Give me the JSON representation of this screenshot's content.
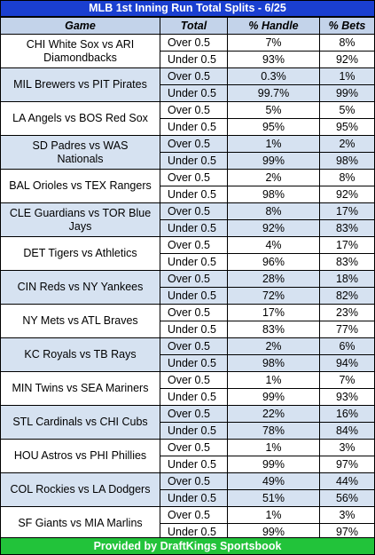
{
  "title": "MLB 1st Inning Run Total Splits - 6/25",
  "headers": {
    "game": "Game",
    "total": "Total",
    "handle": "% Handle",
    "bets": "% Bets"
  },
  "games": [
    {
      "game": "CHI White Sox vs ARI Diamondbacks",
      "over": {
        "total": "Over 0.5",
        "handle": "7%",
        "bets": "8%"
      },
      "under": {
        "total": "Under 0.5",
        "handle": "93%",
        "bets": "92%"
      }
    },
    {
      "game": "MIL Brewers vs PIT Pirates",
      "over": {
        "total": "Over 0.5",
        "handle": "0.3%",
        "bets": "1%"
      },
      "under": {
        "total": "Under 0.5",
        "handle": "99.7%",
        "bets": "99%"
      }
    },
    {
      "game": "LA Angels vs BOS Red Sox",
      "over": {
        "total": "Over 0.5",
        "handle": "5%",
        "bets": "5%"
      },
      "under": {
        "total": "Under 0.5",
        "handle": "95%",
        "bets": "95%"
      }
    },
    {
      "game": "SD Padres vs WAS Nationals",
      "over": {
        "total": "Over 0.5",
        "handle": "1%",
        "bets": "2%"
      },
      "under": {
        "total": "Under 0.5",
        "handle": "99%",
        "bets": "98%"
      }
    },
    {
      "game": "BAL Orioles vs TEX Rangers",
      "over": {
        "total": "Over 0.5",
        "handle": "2%",
        "bets": "8%"
      },
      "under": {
        "total": "Under 0.5",
        "handle": "98%",
        "bets": "92%"
      }
    },
    {
      "game": "CLE Guardians vs TOR Blue Jays",
      "over": {
        "total": "Over 0.5",
        "handle": "8%",
        "bets": "17%"
      },
      "under": {
        "total": "Under 0.5",
        "handle": "92%",
        "bets": "83%"
      }
    },
    {
      "game": "DET Tigers vs Athletics",
      "over": {
        "total": "Over 0.5",
        "handle": "4%",
        "bets": "17%"
      },
      "under": {
        "total": "Under 0.5",
        "handle": "96%",
        "bets": "83%"
      }
    },
    {
      "game": "CIN Reds vs NY Yankees",
      "over": {
        "total": "Over 0.5",
        "handle": "28%",
        "bets": "18%"
      },
      "under": {
        "total": "Under 0.5",
        "handle": "72%",
        "bets": "82%"
      }
    },
    {
      "game": "NY Mets vs ATL Braves",
      "over": {
        "total": "Over 0.5",
        "handle": "17%",
        "bets": "23%"
      },
      "under": {
        "total": "Under 0.5",
        "handle": "83%",
        "bets": "77%"
      }
    },
    {
      "game": "KC Royals vs TB Rays",
      "over": {
        "total": "Over 0.5",
        "handle": "2%",
        "bets": "6%"
      },
      "under": {
        "total": "Under 0.5",
        "handle": "98%",
        "bets": "94%"
      }
    },
    {
      "game": "MIN Twins vs SEA Mariners",
      "over": {
        "total": "Over 0.5",
        "handle": "1%",
        "bets": "7%"
      },
      "under": {
        "total": "Under 0.5",
        "handle": "99%",
        "bets": "93%"
      }
    },
    {
      "game": "STL Cardinals vs CHI Cubs",
      "over": {
        "total": "Over 0.5",
        "handle": "22%",
        "bets": "16%"
      },
      "under": {
        "total": "Under 0.5",
        "handle": "78%",
        "bets": "84%"
      }
    },
    {
      "game": "HOU Astros vs PHI Phillies",
      "over": {
        "total": "Over 0.5",
        "handle": "1%",
        "bets": "3%"
      },
      "under": {
        "total": "Under 0.5",
        "handle": "99%",
        "bets": "97%"
      }
    },
    {
      "game": "COL Rockies vs LA Dodgers",
      "over": {
        "total": "Over 0.5",
        "handle": "49%",
        "bets": "44%"
      },
      "under": {
        "total": "Under 0.5",
        "handle": "51%",
        "bets": "56%"
      }
    },
    {
      "game": "SF Giants vs MIA Marlins",
      "over": {
        "total": "Over 0.5",
        "handle": "1%",
        "bets": "3%"
      },
      "under": {
        "total": "Under 0.5",
        "handle": "99%",
        "bets": "97%"
      }
    }
  ],
  "footer": "Provided by DraftKings Sportsbook",
  "colors": {
    "title_bg": "#1a3fd0",
    "header_bg": "#c3d3ea",
    "alt_row_bg": "#d6e2f1",
    "footer_bg": "#22c33a"
  }
}
